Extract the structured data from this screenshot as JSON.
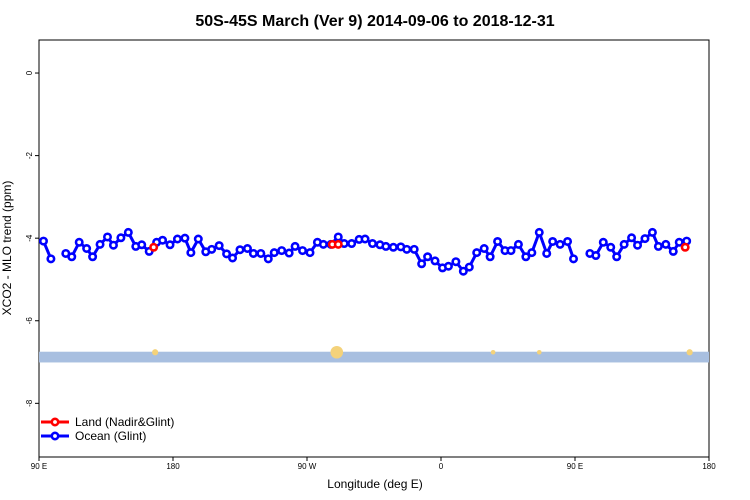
{
  "chart_data": {
    "type": "line",
    "title": "50S-45S March (Ver 9)   2014-09-06 to 2018-12-31",
    "xlabel": "Longitude (deg E)",
    "ylabel": "XCO2 - MLO trend (ppm)",
    "x_ticks": [
      {
        "value": 90,
        "label": "90 E"
      },
      {
        "value": 180,
        "label": "180"
      },
      {
        "value": 270,
        "label": "90 W"
      },
      {
        "value": 360,
        "label": "0"
      },
      {
        "value": 450,
        "label": "90 E"
      },
      {
        "value": 540,
        "label": "180"
      }
    ],
    "y_ticks": [
      {
        "value": 0,
        "label": "0"
      },
      {
        "value": -2,
        "label": "-2"
      },
      {
        "value": -4,
        "label": "-4"
      },
      {
        "value": -6,
        "label": "-6"
      },
      {
        "value": -8,
        "label": "-8"
      }
    ],
    "xlim": [
      90,
      540
    ],
    "ylim": [
      -9.3,
      0.8
    ],
    "grid": false,
    "legend_position": "bottom-left",
    "band": {
      "y_center": -6.88,
      "y_halfwidth": 0.13,
      "color": "#a8bfe0"
    },
    "band_markers": {
      "color": "#f4d27a",
      "points": [
        {
          "x": 168,
          "size": 1
        },
        {
          "x": 290,
          "size": 3
        },
        {
          "x": 395,
          "size": 0.5
        },
        {
          "x": 426,
          "size": 0.5
        },
        {
          "x": 527,
          "size": 1
        }
      ]
    },
    "series": [
      {
        "name": "Land (Nadir&Glint)",
        "color": "#ff0000",
        "segments": [
          [
            [
              167,
              -4.22
            ]
          ],
          [
            [
              287,
              -4.15
            ],
            [
              291,
              -4.15
            ]
          ],
          [
            [
              524,
              -4.22
            ]
          ]
        ]
      },
      {
        "name": "Ocean (Glint)",
        "color": "#0000ff",
        "segments": [
          [
            [
              93,
              -4.07
            ],
            [
              98,
              -4.5
            ]
          ],
          [
            [
              108,
              -4.37
            ],
            [
              112,
              -4.45
            ],
            [
              117,
              -4.1
            ],
            [
              122,
              -4.25
            ],
            [
              126,
              -4.45
            ],
            [
              131,
              -4.15
            ],
            [
              136,
              -3.97
            ],
            [
              140,
              -4.17
            ],
            [
              145,
              -3.99
            ],
            [
              150,
              -3.86
            ],
            [
              155,
              -4.2
            ],
            [
              159,
              -4.16
            ],
            [
              164,
              -4.32
            ],
            [
              169,
              -4.1
            ],
            [
              173,
              -4.05
            ],
            [
              178,
              -4.16
            ],
            [
              183,
              -4.02
            ],
            [
              188,
              -4.0
            ],
            [
              192,
              -4.35
            ],
            [
              197,
              -4.02
            ],
            [
              202,
              -4.33
            ],
            [
              206,
              -4.27
            ],
            [
              211,
              -4.18
            ],
            [
              216,
              -4.38
            ],
            [
              220,
              -4.48
            ],
            [
              225,
              -4.28
            ],
            [
              230,
              -4.25
            ],
            [
              234,
              -4.37
            ],
            [
              239,
              -4.37
            ],
            [
              244,
              -4.5
            ],
            [
              248,
              -4.35
            ],
            [
              253,
              -4.3
            ],
            [
              258,
              -4.36
            ],
            [
              262,
              -4.2
            ],
            [
              267,
              -4.3
            ],
            [
              272,
              -4.35
            ],
            [
              277,
              -4.1
            ],
            [
              281,
              -4.15
            ],
            [
              286,
              -4.15
            ],
            [
              291,
              -3.97
            ],
            [
              295,
              -4.13
            ],
            [
              300,
              -4.13
            ],
            [
              305,
              -4.03
            ],
            [
              309,
              -4.02
            ],
            [
              314,
              -4.13
            ],
            [
              319,
              -4.16
            ],
            [
              323,
              -4.2
            ],
            [
              328,
              -4.22
            ],
            [
              333,
              -4.21
            ],
            [
              337,
              -4.27
            ],
            [
              342,
              -4.27
            ],
            [
              347,
              -4.62
            ],
            [
              351,
              -4.45
            ],
            [
              356,
              -4.55
            ],
            [
              361,
              -4.72
            ],
            [
              365,
              -4.68
            ],
            [
              370,
              -4.57
            ],
            [
              375,
              -4.8
            ],
            [
              379,
              -4.7
            ],
            [
              384,
              -4.35
            ],
            [
              389,
              -4.25
            ],
            [
              393,
              -4.45
            ],
            [
              398,
              -4.08
            ],
            [
              403,
              -4.3
            ],
            [
              407,
              -4.3
            ],
            [
              412,
              -4.15
            ],
            [
              417,
              -4.45
            ],
            [
              421,
              -4.35
            ],
            [
              426,
              -3.86
            ],
            [
              431,
              -4.37
            ],
            [
              435,
              -4.08
            ],
            [
              440,
              -4.15
            ],
            [
              445,
              -4.08
            ],
            [
              449,
              -4.5
            ]
          ],
          [
            [
              460,
              -4.37
            ],
            [
              464,
              -4.42
            ],
            [
              469,
              -4.1
            ],
            [
              474,
              -4.22
            ],
            [
              478,
              -4.45
            ],
            [
              483,
              -4.15
            ],
            [
              488,
              -3.99
            ],
            [
              492,
              -4.17
            ],
            [
              497,
              -4.01
            ],
            [
              502,
              -3.86
            ],
            [
              506,
              -4.2
            ],
            [
              511,
              -4.15
            ],
            [
              516,
              -4.32
            ],
            [
              520,
              -4.1
            ],
            [
              525,
              -4.07
            ]
          ]
        ]
      }
    ]
  }
}
